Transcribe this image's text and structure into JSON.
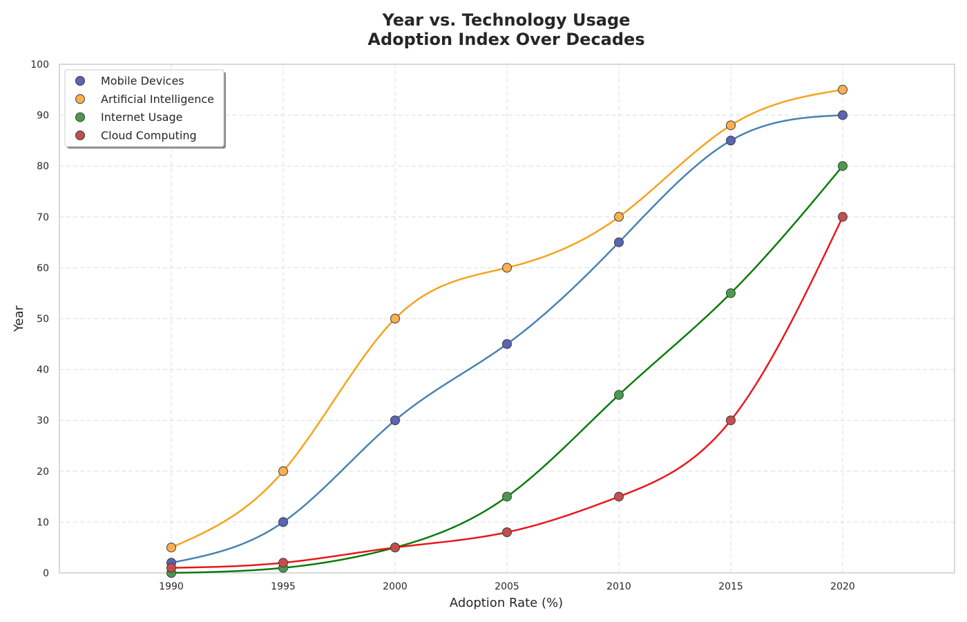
{
  "chart_data": {
    "type": "line",
    "title_line1": "Year vs. Technology Usage",
    "title_line2": "Adoption Index Over Decades",
    "xlabel": "Adoption Rate (%)",
    "ylabel": "Year",
    "x": [
      1990,
      1995,
      2000,
      2005,
      2010,
      2015,
      2020
    ],
    "xlim": [
      1985,
      2025
    ],
    "ylim": [
      0,
      100
    ],
    "xticks": [
      1990,
      1995,
      2000,
      2005,
      2010,
      2015,
      2020
    ],
    "yticks": [
      0,
      10,
      20,
      30,
      40,
      50,
      60,
      70,
      80,
      90,
      100
    ],
    "grid": true,
    "legend_position": "top-left",
    "series": [
      {
        "name": "Mobile Devices",
        "values": [
          2,
          10,
          30,
          45,
          65,
          85,
          90
        ],
        "line_color": "#4682b4",
        "marker_color": "#5b64b5"
      },
      {
        "name": "Artificial Intelligence",
        "values": [
          5,
          20,
          50,
          60,
          70,
          88,
          95
        ],
        "line_color": "#f5a31a",
        "marker_color": "#f9b04d"
      },
      {
        "name": "Internet Usage",
        "values": [
          0,
          1,
          5,
          15,
          35,
          55,
          80
        ],
        "line_color": "#0a7a0a",
        "marker_color": "#4c9a4c"
      },
      {
        "name": "Cloud Computing",
        "values": [
          1,
          2,
          5,
          8,
          15,
          30,
          70
        ],
        "line_color": "#e8171b",
        "marker_color": "#c44e4e"
      }
    ]
  }
}
